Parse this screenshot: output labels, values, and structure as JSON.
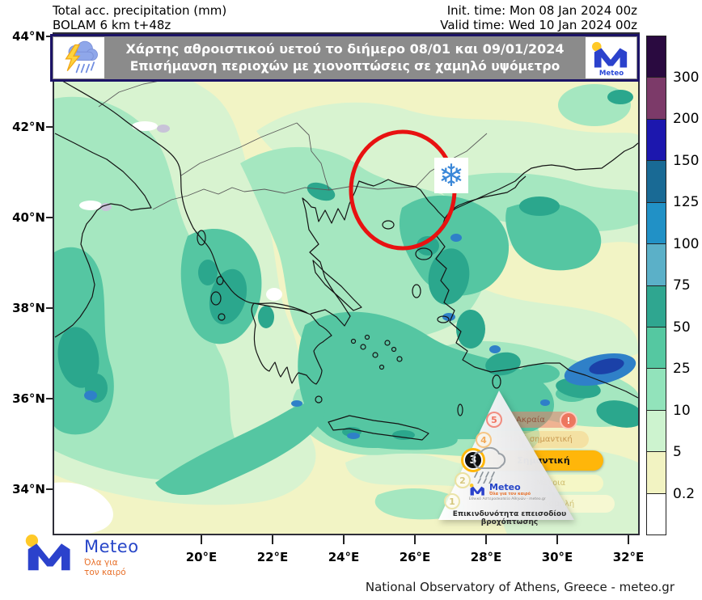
{
  "header": {
    "product": "Total acc. precipitation (mm)",
    "model": "BOLAM 6 km t+48z",
    "init_time": "Init. time: Mon 08 Jan 2024 00z",
    "valid_time": "Valid time: Wed 10 Jan 2024 00z"
  },
  "banner": {
    "line1": "Χάρτης αθροιστικού υετού το διήμερο 08/01 και 09/01/2024",
    "line2": "Επισήμανση περιοχών με χιονοπτώσεις σε χαμηλό υψόμετρο",
    "logo_name": "Meteo"
  },
  "axes": {
    "lat_labels": [
      "44°N",
      "42°N",
      "40°N",
      "38°N",
      "36°N",
      "34°N"
    ],
    "lon_labels": [
      "20°E",
      "22°E",
      "24°E",
      "26°E",
      "28°E",
      "30°E",
      "32°E"
    ]
  },
  "colorbar": {
    "unit": "mm",
    "labels": [
      "300",
      "200",
      "150",
      "125",
      "100",
      "75",
      "50",
      "25",
      "10",
      "5",
      "0.2"
    ],
    "colors": [
      "#2a0a40",
      "#7c3a69",
      "#1c17ae",
      "#196a95",
      "#2191c6",
      "#5bb0c8",
      "#2fa690",
      "#55c8a1",
      "#92e3bb",
      "#cdf3cf",
      "#f2f3c2",
      "#ffffff"
    ]
  },
  "map_colors": {
    "base": "#f2f4c5",
    "pale_green": "#d8f3d0",
    "green": "#a5e7c0",
    "teal": "#55c6a2",
    "dark_teal": "#2ba78d",
    "blue": "#2f80c8",
    "deep_blue": "#1b41a8",
    "circle_red": "#e81111",
    "snowflake_blue": "#3a87d8"
  },
  "annotation": {
    "snowflake": "❄"
  },
  "pyramid": {
    "levels": [
      {
        "num": "5",
        "label": "Ακραία"
      },
      {
        "num": "4",
        "label": "Πολύ σημαντική"
      },
      {
        "num": "3",
        "label": "Σημαντική"
      },
      {
        "num": "2",
        "label": "Μέτρια"
      },
      {
        "num": "1",
        "label": "Χαμηλή"
      }
    ],
    "active_level": "3",
    "alert_mark": "!",
    "caption": "Επικινδυνότητα επεισοδίου βροχόπτωσης",
    "logo": {
      "name": "Meteo",
      "tagline": "Όλα για τον καιρό",
      "org": "Εθνικό Αστεροσκοπείο Αθηνών - meteo.gr"
    }
  },
  "footer": {
    "logo_name": "Meteo",
    "logo_tagline_line1": "Όλα για",
    "logo_tagline_line2": "τον καιρό",
    "attribution": "National Observatory of Athens, Greece - meteo.gr"
  }
}
